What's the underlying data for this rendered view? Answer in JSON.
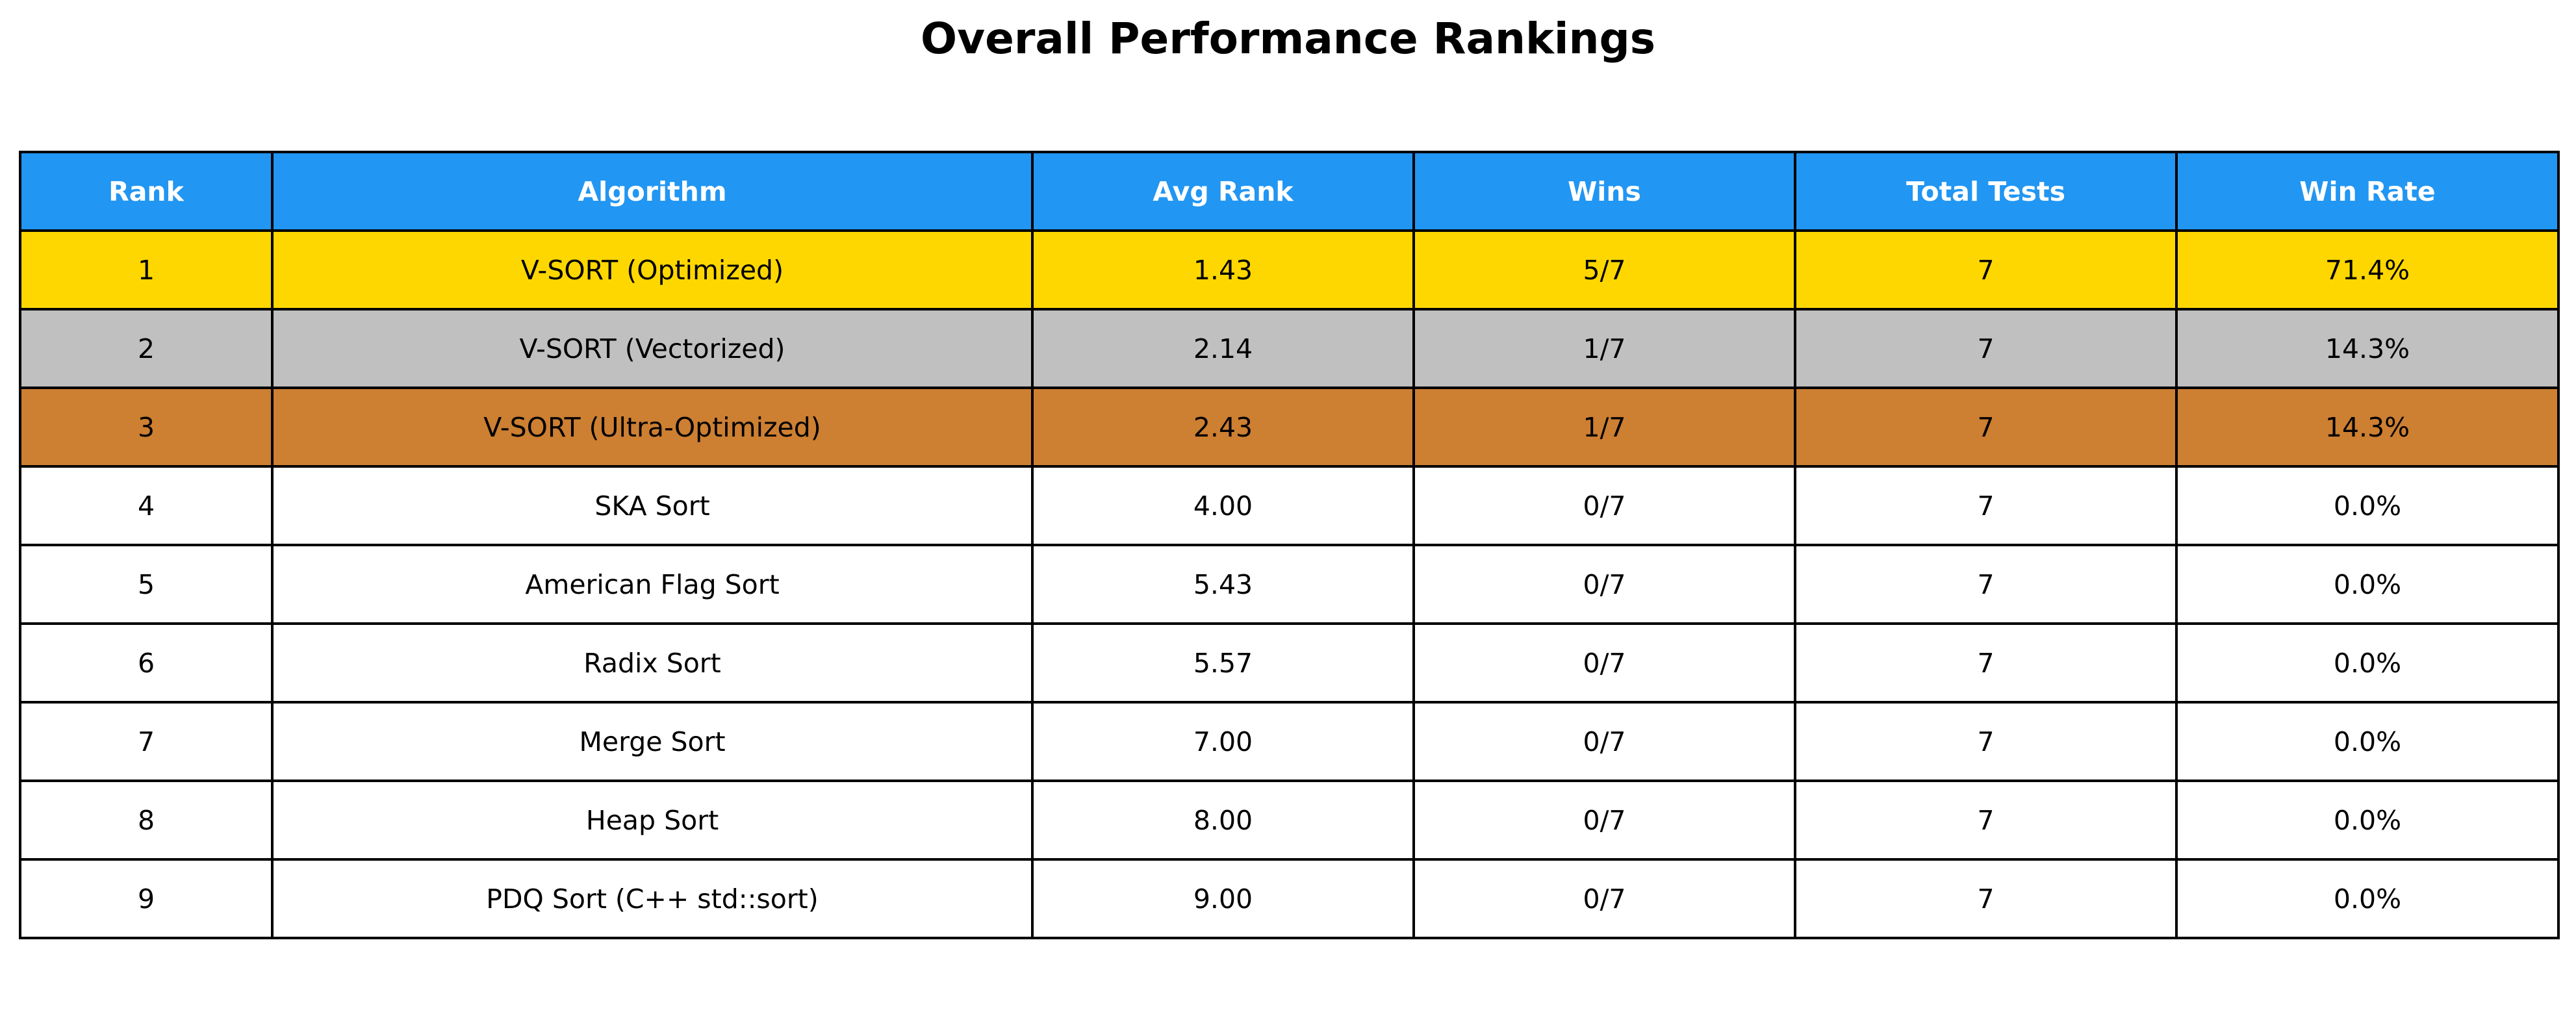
{
  "colors": {
    "header_bg": "#2196F3",
    "header_text": "#FFFFFF",
    "gold": "#FFD700",
    "silver": "#C0C0C0",
    "bronze": "#CD7F32",
    "default_row": "#FFFFFF",
    "border": "#000000"
  },
  "chart_data": {
    "type": "table",
    "title": "Overall Performance Rankings",
    "columns": [
      "Rank",
      "Algorithm",
      "Avg Rank",
      "Wins",
      "Total Tests",
      "Win Rate"
    ],
    "rows": [
      [
        "1",
        "V-SORT (Optimized)",
        "1.43",
        "5/7",
        "7",
        "71.4%"
      ],
      [
        "2",
        "V-SORT (Vectorized)",
        "2.14",
        "1/7",
        "7",
        "14.3%"
      ],
      [
        "3",
        "V-SORT (Ultra-Optimized)",
        "2.43",
        "1/7",
        "7",
        "14.3%"
      ],
      [
        "4",
        "SKA Sort",
        "4.00",
        "0/7",
        "7",
        "0.0%"
      ],
      [
        "5",
        "American Flag Sort",
        "5.43",
        "0/7",
        "7",
        "0.0%"
      ],
      [
        "6",
        "Radix Sort",
        "5.57",
        "0/7",
        "7",
        "0.0%"
      ],
      [
        "7",
        "Merge Sort",
        "7.00",
        "0/7",
        "7",
        "0.0%"
      ],
      [
        "8",
        "Heap Sort",
        "8.00",
        "0/7",
        "7",
        "0.0%"
      ],
      [
        "9",
        "PDQ Sort (C++ std::sort)",
        "9.00",
        "0/7",
        "7",
        "0.0%"
      ]
    ],
    "row_highlights": [
      "gold",
      "silver",
      "bronze",
      "default_row",
      "default_row",
      "default_row",
      "default_row",
      "default_row",
      "default_row"
    ]
  }
}
